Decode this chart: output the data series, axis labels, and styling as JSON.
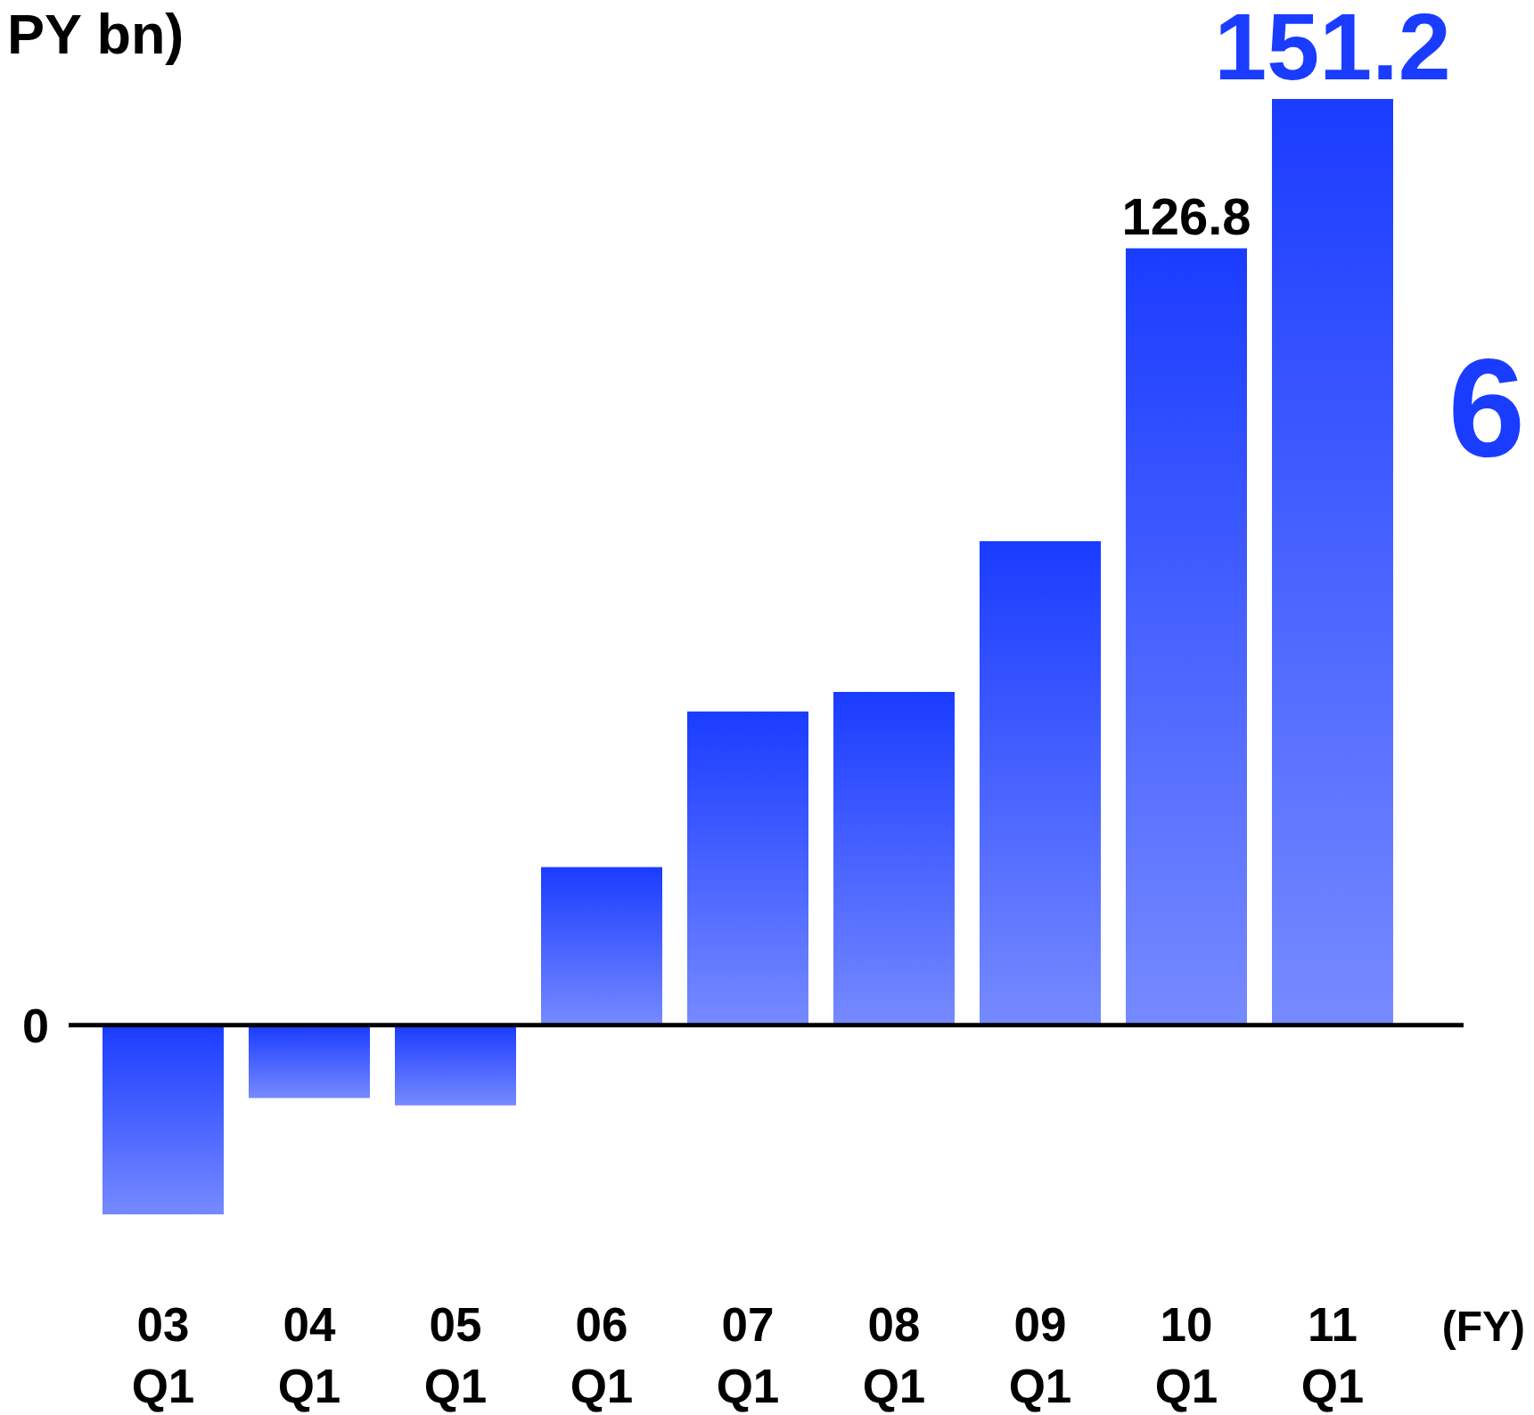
{
  "chart_data": {
    "type": "bar",
    "ylabel": "PY bn)",
    "xlabel": "(FY)",
    "annotations": [
      "6"
    ],
    "categories": [
      "03\nQ1",
      "04\nQ1",
      "05\nQ1",
      "06\nQ1",
      "07\nQ1",
      "08\nQ1",
      "09\nQ1",
      "10\nQ1",
      "11\nQ1"
    ],
    "values": [
      -30.9,
      -11.9,
      -13.1,
      25.8,
      51.2,
      54.4,
      79.0,
      126.8,
      151.2
    ],
    "value_labels": [
      null,
      null,
      null,
      null,
      null,
      null,
      null,
      "126.8",
      "151.2"
    ],
    "color": "#1a3cff",
    "tick_labels": "x",
    "ref_lines": [
      {
        "axis": "y",
        "value": 0,
        "label": "0",
        "color": "#000000"
      }
    ]
  }
}
